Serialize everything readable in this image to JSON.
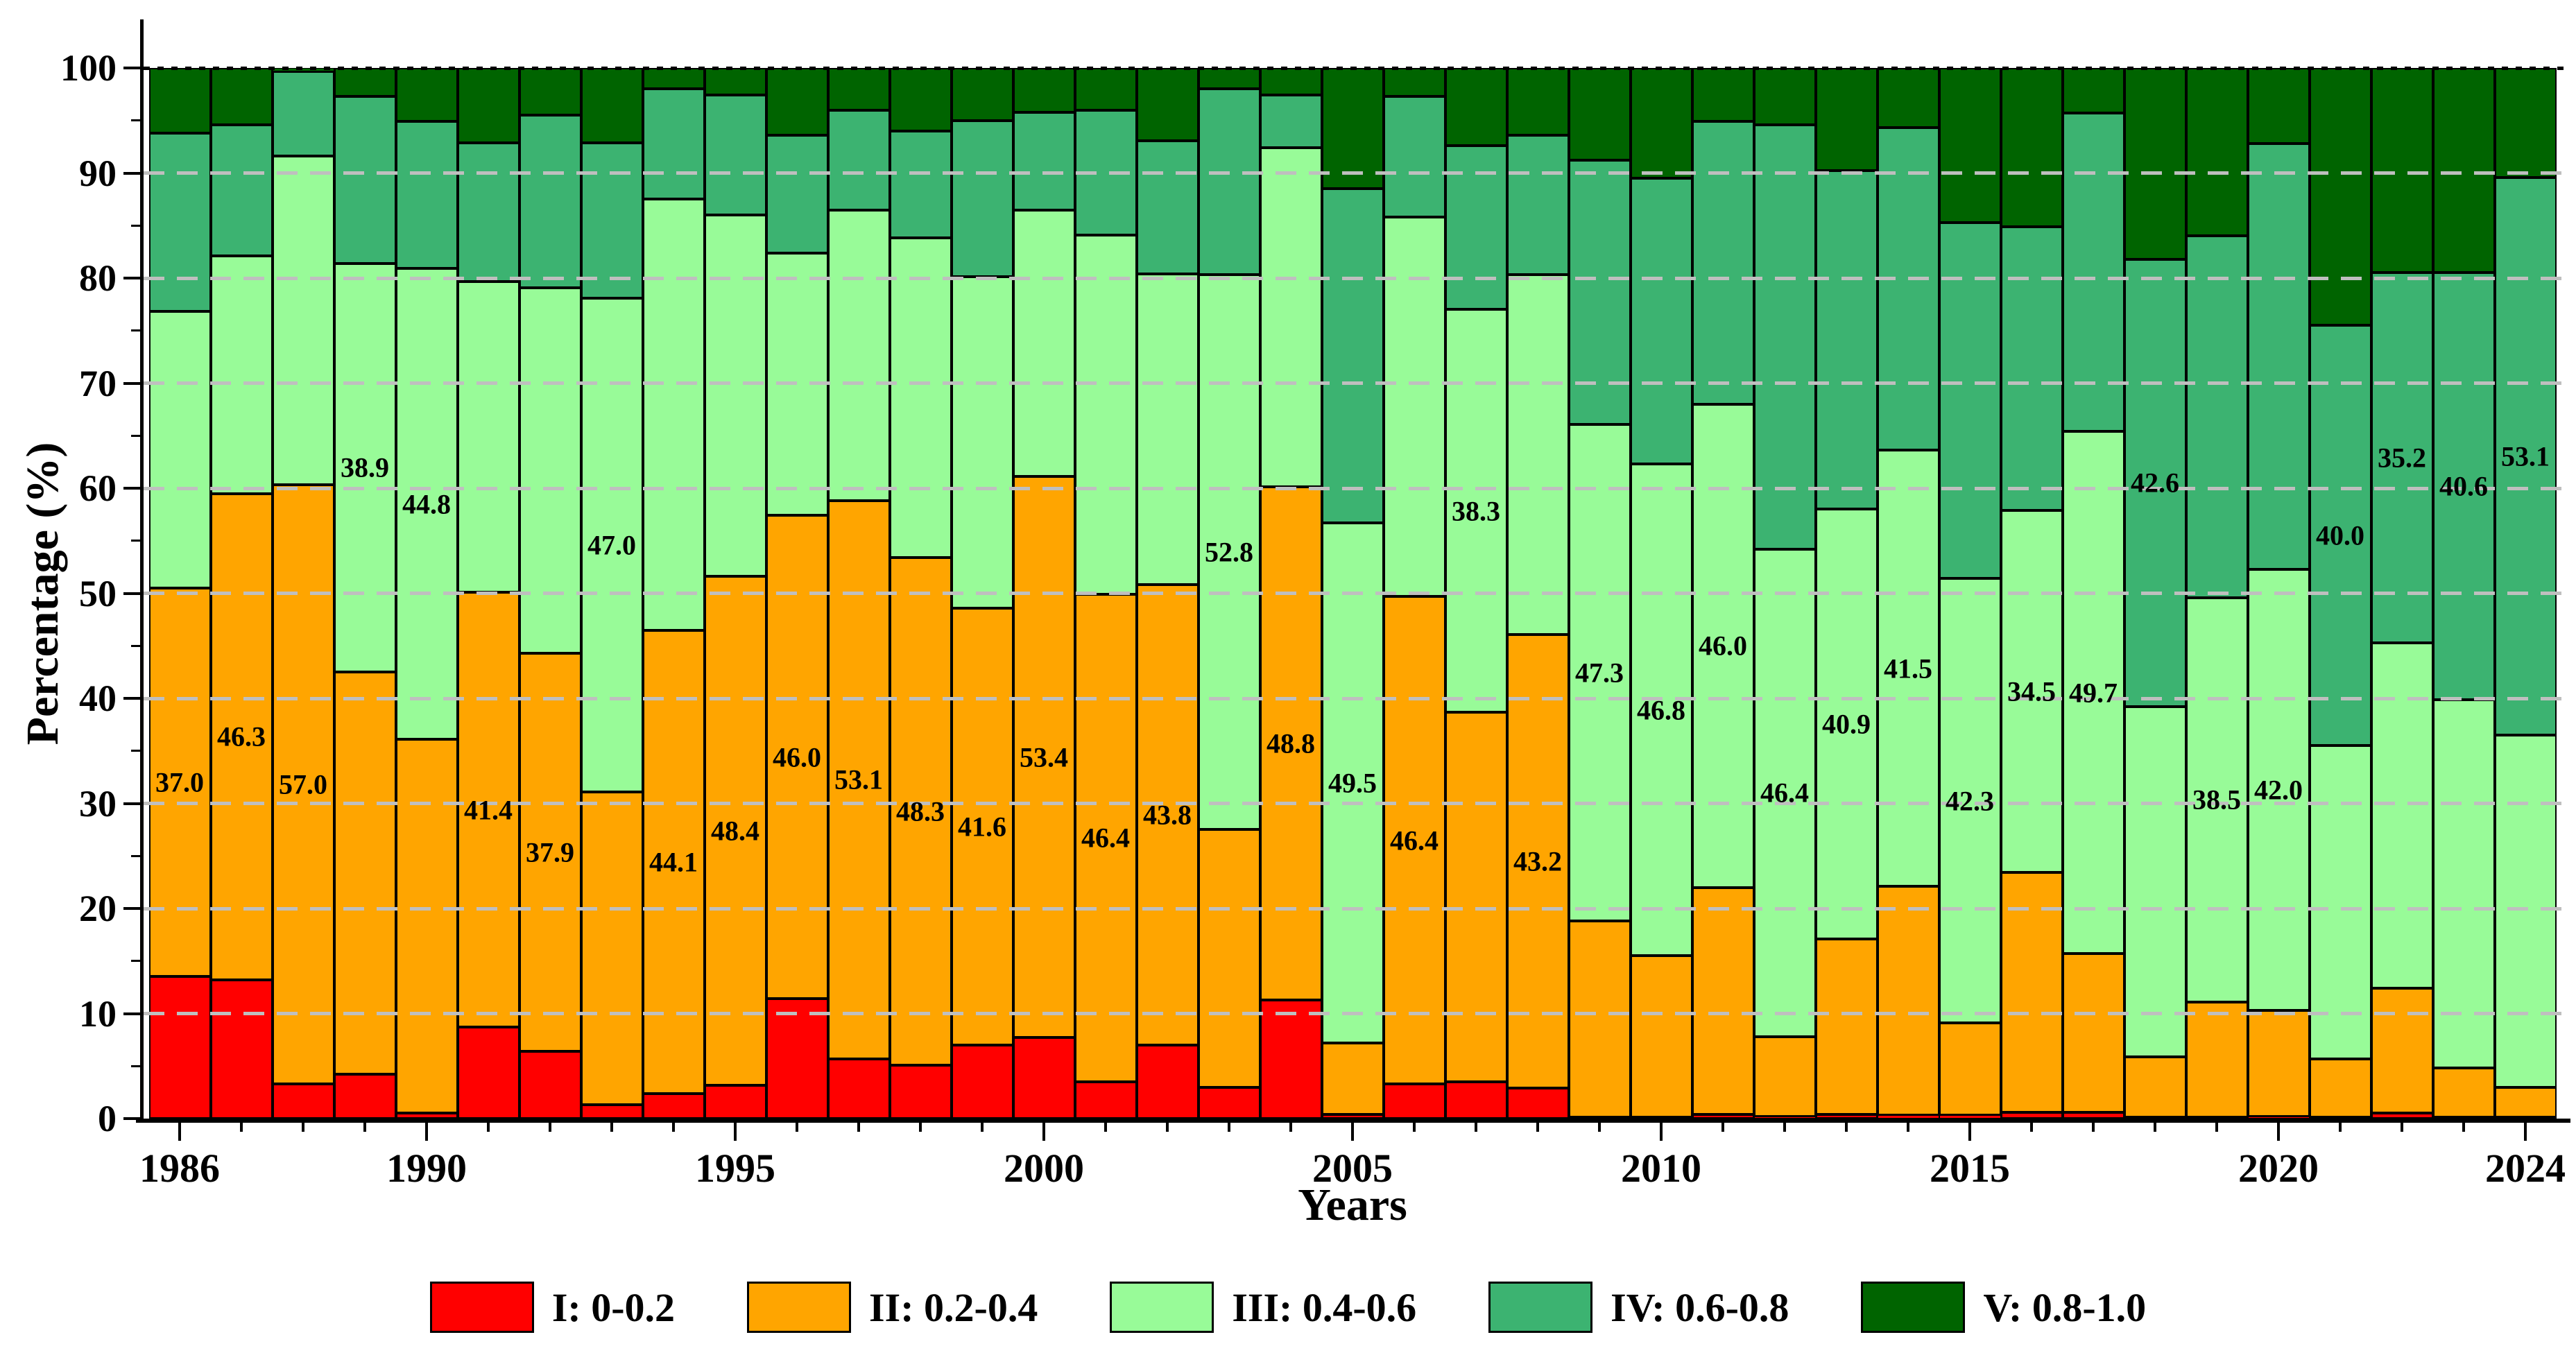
{
  "chart_data": {
    "type": "bar",
    "stacked": true,
    "orientation": "vertical",
    "title": "",
    "xlabel": "Years",
    "ylabel": "Percentage (%)",
    "ylim": [
      0,
      100
    ],
    "ytick_major_step": 10,
    "ytick_minor_step": 5,
    "grid": "horizontal dashed at every 10, dotted black line at 100",
    "legend_position": "bottom",
    "xtick_labeled_years": [
      1986,
      1990,
      1995,
      2000,
      2005,
      2010,
      2015,
      2020,
      2024
    ],
    "years": [
      1986,
      1987,
      1988,
      1989,
      1990,
      1991,
      1992,
      1993,
      1994,
      1995,
      1996,
      1997,
      1998,
      1999,
      2000,
      2001,
      2002,
      2003,
      2004,
      2005,
      2006,
      2007,
      2008,
      2009,
      2010,
      2011,
      2012,
      2013,
      2014,
      2015,
      2016,
      2017,
      2018,
      2019,
      2020,
      2021,
      2022,
      2023,
      2024
    ],
    "series": [
      {
        "name": "I: 0-0.2",
        "color": "#FF0000",
        "values": [
          13.5,
          13.2,
          3.3,
          4.2,
          0.5,
          8.7,
          6.4,
          1.3,
          2.4,
          3.2,
          11.4,
          5.7,
          5.1,
          7.0,
          7.7,
          3.5,
          7.0,
          3.0,
          11.3,
          0.4,
          3.3,
          3.5,
          2.9,
          0.1,
          0.1,
          0.4,
          0.2,
          0.4,
          0.3,
          0.3,
          0.6,
          0.6,
          0.1,
          0.1,
          0.2,
          0.1,
          0.5,
          0.1,
          0.1
        ]
      },
      {
        "name": "II: 0.2-0.4",
        "color": "#FFA500",
        "values": [
          37.0,
          46.3,
          57.0,
          38.3,
          35.6,
          41.4,
          37.9,
          29.8,
          44.1,
          48.4,
          46.0,
          53.1,
          48.3,
          41.6,
          53.4,
          46.4,
          43.8,
          24.5,
          48.8,
          6.8,
          46.4,
          35.2,
          43.2,
          18.7,
          15.4,
          21.6,
          7.6,
          16.7,
          21.8,
          8.8,
          22.8,
          15.1,
          5.8,
          11.0,
          10.1,
          5.6,
          11.9,
          4.7,
          2.9
        ]
      },
      {
        "name": "III: 0.4-0.6",
        "color": "#98FB98",
        "values": [
          26.3,
          22.6,
          31.3,
          38.9,
          44.8,
          29.6,
          34.8,
          47.0,
          41.0,
          34.4,
          25.0,
          27.7,
          30.4,
          31.5,
          25.4,
          34.2,
          29.6,
          52.8,
          32.3,
          49.5,
          36.1,
          38.3,
          34.2,
          47.3,
          46.8,
          46.0,
          46.4,
          40.9,
          41.5,
          42.3,
          34.5,
          49.7,
          33.3,
          38.5,
          42.0,
          29.8,
          32.9,
          35.1,
          33.5
        ]
      },
      {
        "name": "IV: 0.6-0.8",
        "color": "#3CB371",
        "values": [
          17.0,
          12.5,
          8.1,
          15.9,
          14.0,
          13.2,
          16.4,
          14.8,
          10.5,
          11.4,
          11.2,
          9.5,
          10.2,
          14.9,
          9.3,
          11.9,
          12.7,
          17.7,
          5.0,
          31.8,
          11.5,
          15.6,
          13.3,
          25.1,
          27.2,
          26.9,
          40.4,
          32.2,
          30.7,
          33.9,
          27.0,
          30.3,
          42.6,
          34.4,
          40.5,
          40.0,
          35.2,
          40.6,
          53.1
        ]
      },
      {
        "name": "V: 0.8-1.0",
        "color": "#006400",
        "values": [
          6.2,
          5.4,
          0.3,
          2.7,
          5.1,
          7.1,
          4.5,
          7.1,
          2.0,
          2.6,
          6.4,
          4.0,
          6.0,
          5.0,
          4.2,
          4.0,
          6.9,
          2.0,
          2.6,
          11.5,
          2.7,
          7.4,
          6.4,
          8.8,
          10.5,
          5.1,
          5.4,
          9.8,
          5.7,
          14.7,
          15.1,
          4.3,
          18.2,
          16.0,
          7.2,
          24.5,
          19.5,
          19.5,
          10.4
        ]
      }
    ],
    "bar_label_series_index": [
      1,
      1,
      1,
      2,
      2,
      1,
      1,
      2,
      1,
      1,
      1,
      1,
      1,
      1,
      1,
      1,
      1,
      2,
      1,
      2,
      1,
      2,
      1,
      2,
      2,
      2,
      2,
      2,
      2,
      2,
      2,
      2,
      3,
      2,
      2,
      3,
      3,
      3,
      3
    ],
    "bar_label_values": [
      "37.0",
      "46.3",
      "57.0",
      "38.9",
      "44.8",
      "41.4",
      "37.9",
      "47.0",
      "44.1",
      "48.4",
      "46.0",
      "53.1",
      "48.3",
      "41.6",
      "53.4",
      "46.4",
      "43.8",
      "52.8",
      "48.8",
      "49.5",
      "46.4",
      "38.3",
      "43.2",
      "47.3",
      "46.8",
      "46.0",
      "46.4",
      "40.9",
      "41.5",
      "42.3",
      "34.5",
      "49.7",
      "42.6",
      "38.5",
      "42.0",
      "40.0",
      "35.2",
      "40.6",
      "53.1"
    ]
  },
  "legend": {
    "items": [
      {
        "label": "I: 0-0.2",
        "color": "#FF0000"
      },
      {
        "label": "II: 0.2-0.4",
        "color": "#FFA500"
      },
      {
        "label": "III: 0.4-0.6",
        "color": "#98FB98"
      },
      {
        "label": "IV: 0.6-0.8",
        "color": "#3CB371"
      },
      {
        "label": "V: 0.8-1.0",
        "color": "#006400"
      }
    ]
  }
}
